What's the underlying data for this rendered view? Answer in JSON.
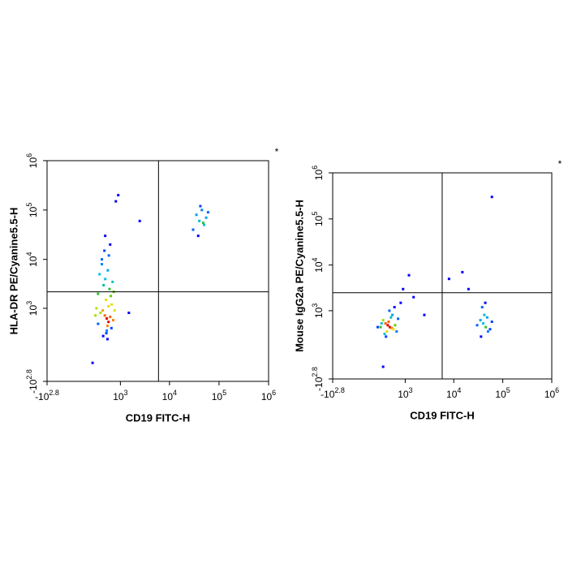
{
  "chart_data": [
    {
      "type": "scatter",
      "x_label": "CD19 FITC-H",
      "y_label": "HLA-DR PE/Cyanine5.5-H",
      "marker": "*",
      "xlim": [
        -631,
        1000000
      ],
      "ylim": [
        -631,
        1000000
      ],
      "xticks": [
        {
          "value": -631,
          "label": "-10^2.8"
        },
        {
          "value": 1000,
          "label": "10^3"
        },
        {
          "value": 10000,
          "label": "10^4"
        },
        {
          "value": 100000,
          "label": "10^5"
        },
        {
          "value": 1000000,
          "label": "10^6"
        }
      ],
      "yticks": [
        {
          "value": -631,
          "label": "-10^2.8"
        },
        {
          "value": 1000,
          "label": "10^3"
        },
        {
          "value": 10000,
          "label": "10^4"
        },
        {
          "value": 100000,
          "label": "10^5"
        },
        {
          "value": 1000000,
          "label": "10^6"
        }
      ],
      "gates": {
        "x": 6000,
        "y": 2200
      },
      "x": [
        500,
        450,
        550,
        400,
        600,
        480,
        520,
        350,
        650,
        700,
        300,
        420,
        580,
        460,
        530,
        380,
        620,
        250,
        750,
        500,
        440,
        560,
        330,
        680,
        490,
        410,
        600,
        270,
        720,
        520,
        460,
        380,
        550,
        300,
        640,
        40000,
        35000,
        50000,
        45000,
        30000,
        55000,
        42000,
        38000,
        60000,
        48000,
        1500,
        2500,
        800,
        900,
        200
      ],
      "values": [
        600,
        700,
        500,
        900,
        650,
        1500,
        400,
        800,
        1200,
        550,
        2000,
        3000,
        2500,
        4000,
        6000,
        10000,
        1800,
        700,
        900,
        300,
        15000,
        12000,
        5000,
        3500,
        250,
        200,
        20000,
        1000,
        2200,
        150,
        30000,
        8000,
        1100,
        450,
        350,
        60000,
        80000,
        50000,
        100000,
        40000,
        70000,
        120000,
        30000,
        90000,
        55000,
        800,
        60000,
        150000,
        200000,
        -200
      ],
      "colors": [
        "#e00000",
        "#ff6000",
        "#e00000",
        "#ffa000",
        "#ff6000",
        "#e8e000",
        "#ff8000",
        "#a0e000",
        "#e8e000",
        "#ff8000",
        "#30c030",
        "#00c0a0",
        "#30c030",
        "#00c0e0",
        "#00a0f0",
        "#0060ff",
        "#60d000",
        "#a0e000",
        "#e0e000",
        "#0080ff",
        "#0040ff",
        "#0060ff",
        "#00c0e0",
        "#00c0c0",
        "#0040ff",
        "#0000ff",
        "#0000ff",
        "#c0e000",
        "#60d000",
        "#0000ff",
        "#0000ff",
        "#0080ff",
        "#e8e000",
        "#0060ff",
        "#0040ff",
        "#00c0c0",
        "#00a0f0",
        "#00c0e0",
        "#0080ff",
        "#0060ff",
        "#00a0f0",
        "#0040ff",
        "#0000ff",
        "#0060ff",
        "#30c030",
        "#0000ff",
        "#0000ff",
        "#0000ff",
        "#0000ff",
        "#0000ff"
      ]
    },
    {
      "type": "scatter",
      "x_label": "CD19 FITC-H",
      "y_label": "Mouse IgG2a PE/Cyanine5.5-H",
      "marker": "*",
      "xlim": [
        -631,
        1000000
      ],
      "ylim": [
        -631,
        1000000
      ],
      "xticks": [
        {
          "value": -631,
          "label": "-10^2.8"
        },
        {
          "value": 1000,
          "label": "10^3"
        },
        {
          "value": 10000,
          "label": "10^4"
        },
        {
          "value": 100000,
          "label": "10^5"
        },
        {
          "value": 1000000,
          "label": "10^6"
        }
      ],
      "yticks": [
        {
          "value": -631,
          "label": "-10^2.8"
        },
        {
          "value": 1000,
          "label": "10^3"
        },
        {
          "value": 10000,
          "label": "10^4"
        },
        {
          "value": 100000,
          "label": "10^5"
        },
        {
          "value": 1000000,
          "label": "10^6"
        }
      ],
      "gates": {
        "x": 5800,
        "y": 2500
      },
      "x": [
        400,
        450,
        350,
        500,
        420,
        380,
        300,
        550,
        600,
        250,
        480,
        330,
        520,
        270,
        650,
        700,
        200,
        440,
        360,
        580,
        800,
        1500,
        900,
        2500,
        40000,
        45000,
        35000,
        50000,
        42000,
        38000,
        55000,
        48000,
        30000,
        60000,
        44000,
        36000,
        8000,
        20000,
        60000,
        300,
        15000,
        1200
      ],
      "values": [
        450,
        400,
        500,
        380,
        550,
        300,
        600,
        350,
        450,
        400,
        700,
        250,
        800,
        500,
        300,
        650,
        400,
        1000,
        200,
        1200,
        1500,
        2000,
        3000,
        800,
        500,
        400,
        600,
        300,
        800,
        1200,
        350,
        700,
        450,
        550,
        1500,
        200,
        5000,
        3000,
        300000,
        -300,
        7000,
        6000
      ],
      "colors": [
        "#e00000",
        "#e00000",
        "#ff6000",
        "#ff8000",
        "#ff6000",
        "#e8e000",
        "#a0e000",
        "#e8e000",
        "#60d000",
        "#30c030",
        "#00c0c0",
        "#00c0e0",
        "#00a0f0",
        "#00c0e0",
        "#0080ff",
        "#0060ff",
        "#0040ff",
        "#0060ff",
        "#0040ff",
        "#0000ff",
        "#0000ff",
        "#0000ff",
        "#0000ff",
        "#0000ff",
        "#00c0e0",
        "#30c030",
        "#00a0f0",
        "#0080ff",
        "#00c0c0",
        "#0060ff",
        "#0040ff",
        "#00a0f0",
        "#0060ff",
        "#0040ff",
        "#0000ff",
        "#0000ff",
        "#0000ff",
        "#0000ff",
        "#0000ff",
        "#0000ff",
        "#0000ff",
        "#0000ff"
      ]
    }
  ]
}
